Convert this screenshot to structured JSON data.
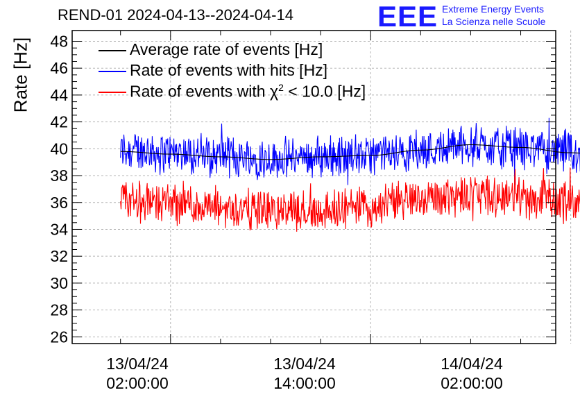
{
  "header": {
    "title": "REND-01 2024-04-13--2024-04-14",
    "logo_mark": "EEE",
    "logo_line1": "Extreme Energy Events",
    "logo_line2": "La Scienza nelle Scuole"
  },
  "chart_data": {
    "type": "line",
    "title": "REND-01 2024-04-13--2024-04-14",
    "xlabel": "",
    "ylabel": "Rate [Hz]",
    "ylim": [
      25.5,
      48.8
    ],
    "yticks": [
      "26",
      "28",
      "30",
      "32",
      "34",
      "36",
      "38",
      "40",
      "42",
      "44",
      "46",
      "48"
    ],
    "xlim_hours": [
      -5.9,
      23.1
    ],
    "xticks": [
      {
        "hour": 0,
        "date": "13/04/24",
        "time": "02:00:00"
      },
      {
        "hour": 12,
        "date": "13/04/24",
        "time": "14:00:00"
      },
      {
        "hour": 24,
        "date": "14/04/24",
        "time": "02:00:00"
      }
    ],
    "grid": true,
    "legend_position": "top-left",
    "x_range_hours": [
      -3,
      27
    ],
    "series": [
      {
        "name": "Average rate of events [Hz]",
        "color": "#000000",
        "mean": 39.6,
        "anchor_hours": [
          -3,
          0,
          3,
          6,
          9,
          12,
          15,
          18,
          21,
          24,
          27
        ],
        "anchor_values": [
          39.8,
          39.6,
          39.4,
          39.2,
          39.4,
          39.5,
          39.9,
          40.3,
          40.1,
          39.7,
          39.4
        ]
      },
      {
        "name": "Rate of events with hits [Hz]",
        "color": "#0000ff",
        "min": 37.3,
        "max": 42.3,
        "anchor_hours": [
          -3,
          0,
          3,
          6,
          9,
          12,
          15,
          18,
          21,
          24,
          27
        ],
        "anchor_values": [
          39.9,
          39.7,
          39.5,
          39.3,
          39.4,
          39.5,
          39.9,
          40.3,
          40.1,
          39.7,
          39.4
        ]
      },
      {
        "name": "Rate of events with χ² < 10.0 [Hz]",
        "color": "#ff0000",
        "min": 33.1,
        "max": 38.6,
        "anchor_hours": [
          -3,
          0,
          3,
          6,
          9,
          12,
          15,
          18,
          21,
          24,
          27
        ],
        "anchor_values": [
          36.2,
          36.0,
          35.6,
          35.4,
          35.4,
          35.7,
          36.3,
          36.7,
          36.4,
          36.1,
          35.6
        ]
      }
    ],
    "legend": {
      "avg_label": "Average rate of events [Hz]",
      "hits_label": "Rate of events with hits [Hz]",
      "chi_prefix": "Rate of events with χ",
      "chi_sup": "2",
      "chi_suffix": " < 10.0 [Hz]"
    }
  },
  "colors": {
    "logo": "#1a1aff",
    "grid": "#b4b4b4"
  }
}
